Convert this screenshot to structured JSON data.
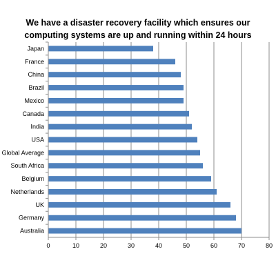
{
  "chart_data": {
    "type": "bar",
    "orientation": "horizontal",
    "title_lines": [
      "We have a disaster recovery facility which ensures our",
      "computing systems are up and running within 24 hours"
    ],
    "categories": [
      "Japan",
      "France",
      "China",
      "Brazil",
      "Mexico",
      "Canada",
      "India",
      "USA",
      "Global Average",
      "South Africa",
      "Belgium",
      "Netherlands",
      "UK",
      "Germany",
      "Australia"
    ],
    "values": [
      38,
      46,
      48,
      49,
      49,
      51,
      52,
      54,
      55,
      56,
      59,
      61,
      66,
      68,
      70
    ],
    "xlim": [
      0,
      80
    ],
    "xticks": [
      0,
      10,
      20,
      30,
      40,
      50,
      60,
      70,
      80
    ],
    "grid": true,
    "bar_color": "#4f81bd",
    "xlabel": "",
    "ylabel": ""
  }
}
